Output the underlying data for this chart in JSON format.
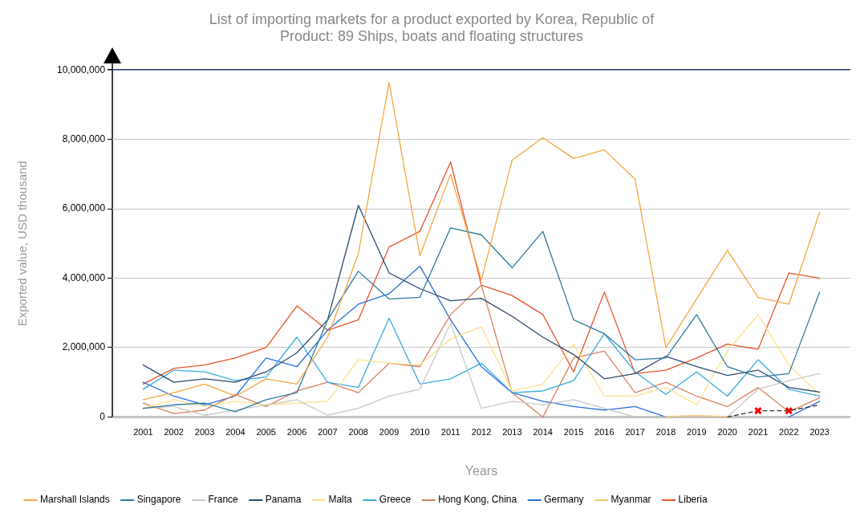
{
  "chart_data": {
    "type": "line",
    "title": "List of importing markets for a product exported by Korea, Republic of",
    "subtitle": "Product: 89 Ships, boats and floating structures",
    "xlabel": "Years",
    "ylabel": "Exported value, USD thousand",
    "x": [
      2001,
      2002,
      2003,
      2004,
      2005,
      2006,
      2007,
      2008,
      2009,
      2010,
      2011,
      2012,
      2013,
      2014,
      2015,
      2016,
      2017,
      2018,
      2019,
      2020,
      2021,
      2022,
      2023
    ],
    "xlim": [
      2000,
      2024
    ],
    "xticks": [
      2001,
      2002,
      2003,
      2004,
      2005,
      2006,
      2007,
      2008,
      2009,
      2010,
      2011,
      2012,
      2013,
      2014,
      2015,
      2016,
      2017,
      2018,
      2019,
      2020,
      2021,
      2022,
      2023
    ],
    "ylim": [
      0,
      10000000
    ],
    "yticks": [
      {
        "value": 0,
        "label": "0"
      },
      {
        "value": 2000000,
        "label": "2,000,000"
      },
      {
        "value": 4000000,
        "label": "4,000,000"
      },
      {
        "value": 6000000,
        "label": "6,000,000"
      },
      {
        "value": 8000000,
        "label": "8,000,000"
      },
      {
        "value": 10000000,
        "label": "10,000,000"
      }
    ],
    "grid": "y",
    "legend": "bottom",
    "marker": "none",
    "line_style": "solid",
    "series": [
      {
        "name": "Marshall Islands",
        "color": "#f5a742",
        "values": [
          500000,
          700000,
          950000,
          600000,
          1100000,
          950000,
          2300000,
          4700000,
          9650000,
          4650000,
          7000000,
          3950000,
          7400000,
          8050000,
          7450000,
          7700000,
          6850000,
          2000000,
          3400000,
          4800000,
          3450000,
          3250000,
          5900000
        ]
      },
      {
        "name": "Singapore",
        "color": "#2b7a9e",
        "values": [
          250000,
          350000,
          400000,
          150000,
          500000,
          700000,
          2800000,
          4200000,
          3400000,
          3450000,
          5450000,
          5250000,
          4300000,
          5350000,
          2800000,
          2400000,
          1650000,
          1700000,
          2950000,
          1450000,
          1150000,
          1250000,
          3600000
        ]
      },
      {
        "name": "France",
        "color": "#c8c8c8",
        "values": [
          250000,
          300000,
          50000,
          200000,
          350000,
          500000,
          50000,
          250000,
          600000,
          800000,
          2700000,
          250000,
          450000,
          350000,
          500000,
          250000,
          0,
          0,
          0,
          0,
          800000,
          1050000,
          1250000
        ]
      },
      {
        "name": "Panama",
        "color": "#2f4a6e",
        "values": [
          1500000,
          1000000,
          1100000,
          1000000,
          1300000,
          1850000,
          2800000,
          6100000,
          4150000,
          3700000,
          3350000,
          3420000,
          2900000,
          2300000,
          1800000,
          1100000,
          1250000,
          1750000,
          1450000,
          1200000,
          1350000,
          850000,
          720000
        ]
      },
      {
        "name": "Malta",
        "color": "#ffe08a",
        "values": [
          250000,
          500000,
          300000,
          450000,
          350000,
          400000,
          450000,
          1650000,
          1550000,
          1500000,
          2250000,
          2600000,
          750000,
          950000,
          2100000,
          600000,
          600000,
          850000,
          350000,
          1900000,
          2950000,
          1500000,
          650000
        ]
      },
      {
        "name": "Greece",
        "color": "#3aa9e0",
        "values": [
          800000,
          1350000,
          1300000,
          1050000,
          1150000,
          2300000,
          1000000,
          850000,
          2850000,
          950000,
          1100000,
          1550000,
          700000,
          750000,
          1050000,
          2400000,
          1300000,
          650000,
          1300000,
          600000,
          1650000,
          800000,
          600000
        ]
      },
      {
        "name": "Hong Kong, China",
        "color": "#d98060",
        "values": [
          400000,
          100000,
          200000,
          650000,
          300000,
          750000,
          1000000,
          700000,
          1550000,
          1450000,
          2950000,
          3800000,
          700000,
          0,
          1700000,
          1900000,
          700000,
          1000000,
          600000,
          300000,
          850000,
          150000,
          550000
        ]
      },
      {
        "name": "Germany",
        "color": "#2a6fdb",
        "values": [
          1000000,
          600000,
          350000,
          600000,
          1700000,
          1450000,
          2500000,
          3250000,
          3550000,
          4350000,
          2800000,
          1450000,
          700000,
          450000,
          300000,
          200000,
          300000,
          0,
          null,
          null,
          null,
          0,
          450000
        ]
      },
      {
        "name": "Myanmar",
        "color": "#f5c46e",
        "values": [
          null,
          null,
          null,
          null,
          null,
          null,
          null,
          null,
          null,
          null,
          null,
          null,
          null,
          null,
          null,
          null,
          null,
          10000,
          40000,
          10000,
          null,
          null,
          null
        ]
      },
      {
        "name": "Liberia",
        "color": "#e8542a",
        "values": [
          950000,
          1400000,
          1500000,
          1700000,
          2000000,
          3200000,
          2500000,
          2800000,
          4900000,
          5350000,
          7350000,
          3800000,
          3500000,
          2950000,
          1300000,
          3600000,
          1250000,
          1350000,
          1700000,
          2100000,
          1950000,
          4150000,
          4000000
        ]
      },
      {
        "color": "#333333",
        "line_style": "dashed",
        "marker": "cross",
        "colors": [
          null,
          null,
          null,
          null,
          null,
          null,
          null,
          null,
          null,
          null,
          null,
          null,
          null,
          null,
          null,
          null,
          null,
          null,
          null,
          null,
          "#ff0000",
          "#ff0000",
          null
        ],
        "values": [
          null,
          null,
          null,
          null,
          null,
          null,
          null,
          null,
          null,
          null,
          null,
          null,
          null,
          null,
          null,
          null,
          null,
          null,
          null,
          0,
          180000,
          180000,
          350000
        ]
      }
    ]
  }
}
